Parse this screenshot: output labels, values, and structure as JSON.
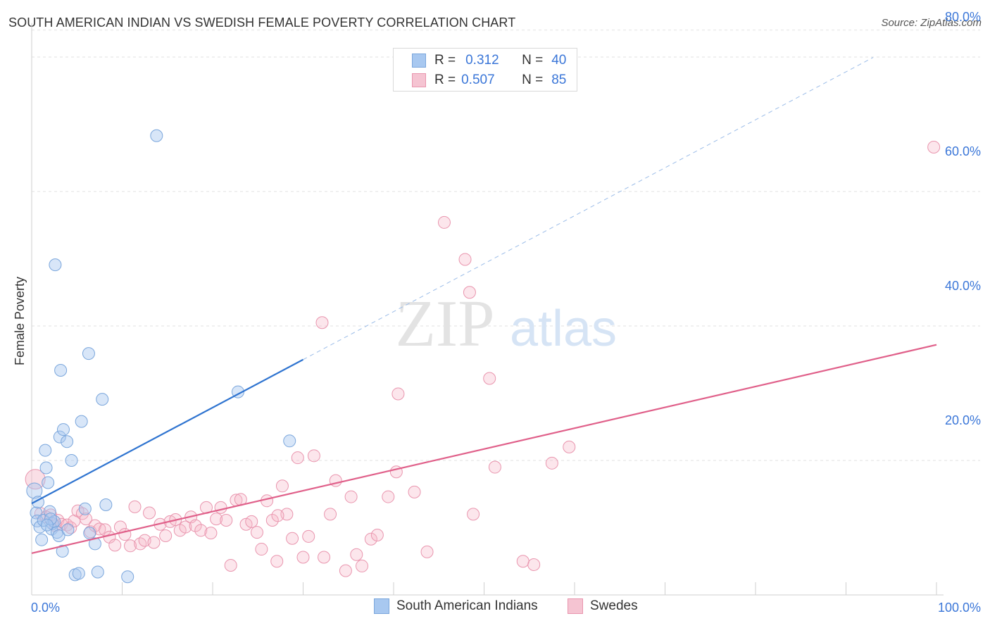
{
  "header": {
    "title": "SOUTH AMERICAN INDIAN VS SWEDISH FEMALE POVERTY CORRELATION CHART",
    "source": "Source: ZipAtlas.com"
  },
  "watermark": {
    "zip": "ZIP",
    "atlas": "atlas"
  },
  "legend": {
    "rows": [
      {
        "r_label": "R =",
        "r_value": "0.312",
        "n_label": "N =",
        "n_value": "40"
      },
      {
        "r_label": "R =",
        "r_value": "0.507",
        "n_label": "N =",
        "n_value": "85"
      }
    ]
  },
  "chart_data": {
    "type": "scatter",
    "title": "SOUTH AMERICAN INDIAN VS SWEDISH FEMALE POVERTY CORRELATION CHART",
    "xlabel": "",
    "ylabel": "Female Poverty",
    "xlim": [
      0,
      100
    ],
    "ylim": [
      0,
      84
    ],
    "x_tick_labels": [
      "0.0%",
      "100.0%"
    ],
    "y_ticks": [
      20,
      40,
      60,
      80
    ],
    "y_tick_labels": [
      "20.0%",
      "40.0%",
      "60.0%",
      "80.0%"
    ],
    "grid": true,
    "legend_position": "top-center",
    "colors": {
      "blue_fill": "#a8c8f0",
      "blue_stroke": "#7aa6dc",
      "blue_line": "#2f74d0",
      "pink_fill": "#f5b8c8",
      "pink_stroke": "#e995ae",
      "pink_line": "#e0608a",
      "axis_label_blue": "#3a76d8"
    },
    "series": [
      {
        "name": "South American Indians",
        "r": 0.312,
        "n": 40,
        "trend": {
          "x0": 0,
          "y0": 13.6,
          "x1": 30,
          "y1": 35,
          "dash_to_x": 93
        },
        "points": [
          [
            0.3,
            15.5
          ],
          [
            0.5,
            12.2
          ],
          [
            0.6,
            11.0
          ],
          [
            0.7,
            13.8
          ],
          [
            0.9,
            10.1
          ],
          [
            1.1,
            8.2
          ],
          [
            1.3,
            11.1
          ],
          [
            1.5,
            21.5
          ],
          [
            1.6,
            18.9
          ],
          [
            1.8,
            16.7
          ],
          [
            2.0,
            12.4
          ],
          [
            2.2,
            9.8
          ],
          [
            2.3,
            10.6
          ],
          [
            2.5,
            10.9
          ],
          [
            2.6,
            49.1
          ],
          [
            2.8,
            9.3
          ],
          [
            3.0,
            8.8
          ],
          [
            3.1,
            23.5
          ],
          [
            3.2,
            33.4
          ],
          [
            3.4,
            6.5
          ],
          [
            3.5,
            24.6
          ],
          [
            3.9,
            22.8
          ],
          [
            4.4,
            20.0
          ],
          [
            4.8,
            3.0
          ],
          [
            5.2,
            3.2
          ],
          [
            5.5,
            25.8
          ],
          [
            5.9,
            12.8
          ],
          [
            6.4,
            9.2
          ],
          [
            7.0,
            7.6
          ],
          [
            7.3,
            3.4
          ],
          [
            7.8,
            29.1
          ],
          [
            8.2,
            13.4
          ],
          [
            10.6,
            2.7
          ],
          [
            13.8,
            68.3
          ],
          [
            6.3,
            35.9
          ],
          [
            22.8,
            30.2
          ],
          [
            28.5,
            22.9
          ],
          [
            2.1,
            11.3
          ],
          [
            1.7,
            10.4
          ],
          [
            4.0,
            9.7
          ]
        ]
      },
      {
        "name": "Swedes",
        "r": 0.507,
        "n": 85,
        "trend": {
          "x0": 0,
          "y0": 6.2,
          "x1": 100,
          "y1": 37.2
        },
        "points": [
          [
            0.4,
            17.2
          ],
          [
            1.0,
            12.1
          ],
          [
            1.6,
            11.6
          ],
          [
            2.1,
            11.9
          ],
          [
            2.6,
            10.3
          ],
          [
            2.9,
            11.1
          ],
          [
            3.3,
            10.5
          ],
          [
            3.9,
            10.4
          ],
          [
            4.3,
            10.0
          ],
          [
            4.7,
            11.0
          ],
          [
            5.1,
            12.5
          ],
          [
            5.6,
            12.1
          ],
          [
            6.0,
            11.3
          ],
          [
            6.5,
            9.4
          ],
          [
            7.0,
            10.3
          ],
          [
            7.5,
            9.8
          ],
          [
            8.1,
            9.7
          ],
          [
            8.6,
            8.6
          ],
          [
            9.2,
            7.4
          ],
          [
            9.8,
            10.1
          ],
          [
            10.3,
            9.0
          ],
          [
            10.9,
            7.3
          ],
          [
            11.4,
            13.1
          ],
          [
            12.0,
            7.6
          ],
          [
            12.5,
            8.1
          ],
          [
            13.0,
            12.2
          ],
          [
            13.5,
            7.8
          ],
          [
            14.2,
            10.5
          ],
          [
            14.8,
            8.8
          ],
          [
            15.3,
            10.9
          ],
          [
            15.9,
            11.2
          ],
          [
            16.4,
            9.6
          ],
          [
            17.0,
            10.1
          ],
          [
            17.6,
            11.6
          ],
          [
            18.1,
            10.3
          ],
          [
            18.7,
            9.6
          ],
          [
            19.3,
            13.0
          ],
          [
            19.8,
            9.2
          ],
          [
            20.4,
            11.3
          ],
          [
            20.9,
            13.0
          ],
          [
            21.5,
            11.1
          ],
          [
            22.0,
            4.4
          ],
          [
            22.6,
            14.1
          ],
          [
            23.1,
            14.2
          ],
          [
            23.7,
            10.5
          ],
          [
            24.3,
            10.9
          ],
          [
            24.9,
            9.3
          ],
          [
            25.4,
            6.8
          ],
          [
            26.0,
            14.0
          ],
          [
            26.6,
            11.1
          ],
          [
            27.1,
            5.0
          ],
          [
            27.7,
            16.2
          ],
          [
            28.2,
            12.0
          ],
          [
            28.8,
            8.4
          ],
          [
            29.4,
            20.4
          ],
          [
            30.0,
            5.6
          ],
          [
            30.6,
            8.7
          ],
          [
            31.2,
            20.7
          ],
          [
            32.3,
            5.6
          ],
          [
            33.0,
            12.0
          ],
          [
            33.6,
            17.0
          ],
          [
            34.7,
            3.6
          ],
          [
            35.3,
            14.6
          ],
          [
            35.9,
            6.0
          ],
          [
            36.5,
            4.3
          ],
          [
            37.5,
            8.3
          ],
          [
            38.2,
            8.9
          ],
          [
            39.4,
            14.6
          ],
          [
            40.5,
            29.9
          ],
          [
            40.3,
            18.3
          ],
          [
            42.3,
            15.3
          ],
          [
            43.7,
            6.4
          ],
          [
            48.8,
            12.0
          ],
          [
            50.6,
            32.2
          ],
          [
            51.2,
            19.0
          ],
          [
            54.3,
            5.0
          ],
          [
            55.5,
            4.5
          ],
          [
            57.5,
            19.6
          ],
          [
            59.4,
            22.0
          ],
          [
            45.6,
            55.4
          ],
          [
            47.9,
            49.9
          ],
          [
            48.4,
            45.0
          ],
          [
            32.1,
            40.5
          ],
          [
            27.2,
            11.8
          ],
          [
            99.7,
            66.6
          ]
        ]
      }
    ]
  }
}
